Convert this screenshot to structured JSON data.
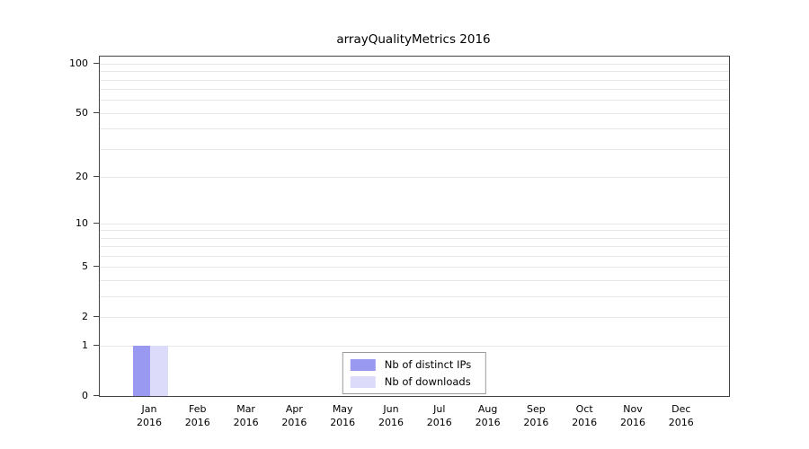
{
  "chart_data": {
    "type": "bar",
    "title": "arrayQualityMetrics 2016",
    "categories": [
      "Jan",
      "Feb",
      "Mar",
      "Apr",
      "May",
      "Jun",
      "Jul",
      "Aug",
      "Sep",
      "Oct",
      "Nov",
      "Dec"
    ],
    "x_year": "2016",
    "series": [
      {
        "name": "Nb of distinct IPs",
        "color": "#9999f1",
        "values": [
          1,
          0,
          0,
          0,
          0,
          0,
          0,
          0,
          0,
          0,
          0,
          0
        ]
      },
      {
        "name": "Nb of downloads",
        "color": "#dcdcfa",
        "values": [
          1,
          0,
          0,
          0,
          0,
          0,
          0,
          0,
          0,
          0,
          0,
          0
        ]
      }
    ],
    "yticks": [
      0,
      1,
      2,
      5,
      10,
      20,
      50,
      100
    ],
    "minor_gridlines": [
      1,
      2,
      3,
      4,
      5,
      6,
      7,
      8,
      9,
      10,
      20,
      30,
      40,
      50,
      60,
      70,
      80,
      90,
      100
    ],
    "scale": "log1p",
    "ylim": [
      0,
      100
    ],
    "grid": true,
    "legend_position": "bottom-center"
  },
  "colors": {
    "axis": "#444444",
    "grid": "#e7e7e7",
    "background": "#ffffff"
  }
}
